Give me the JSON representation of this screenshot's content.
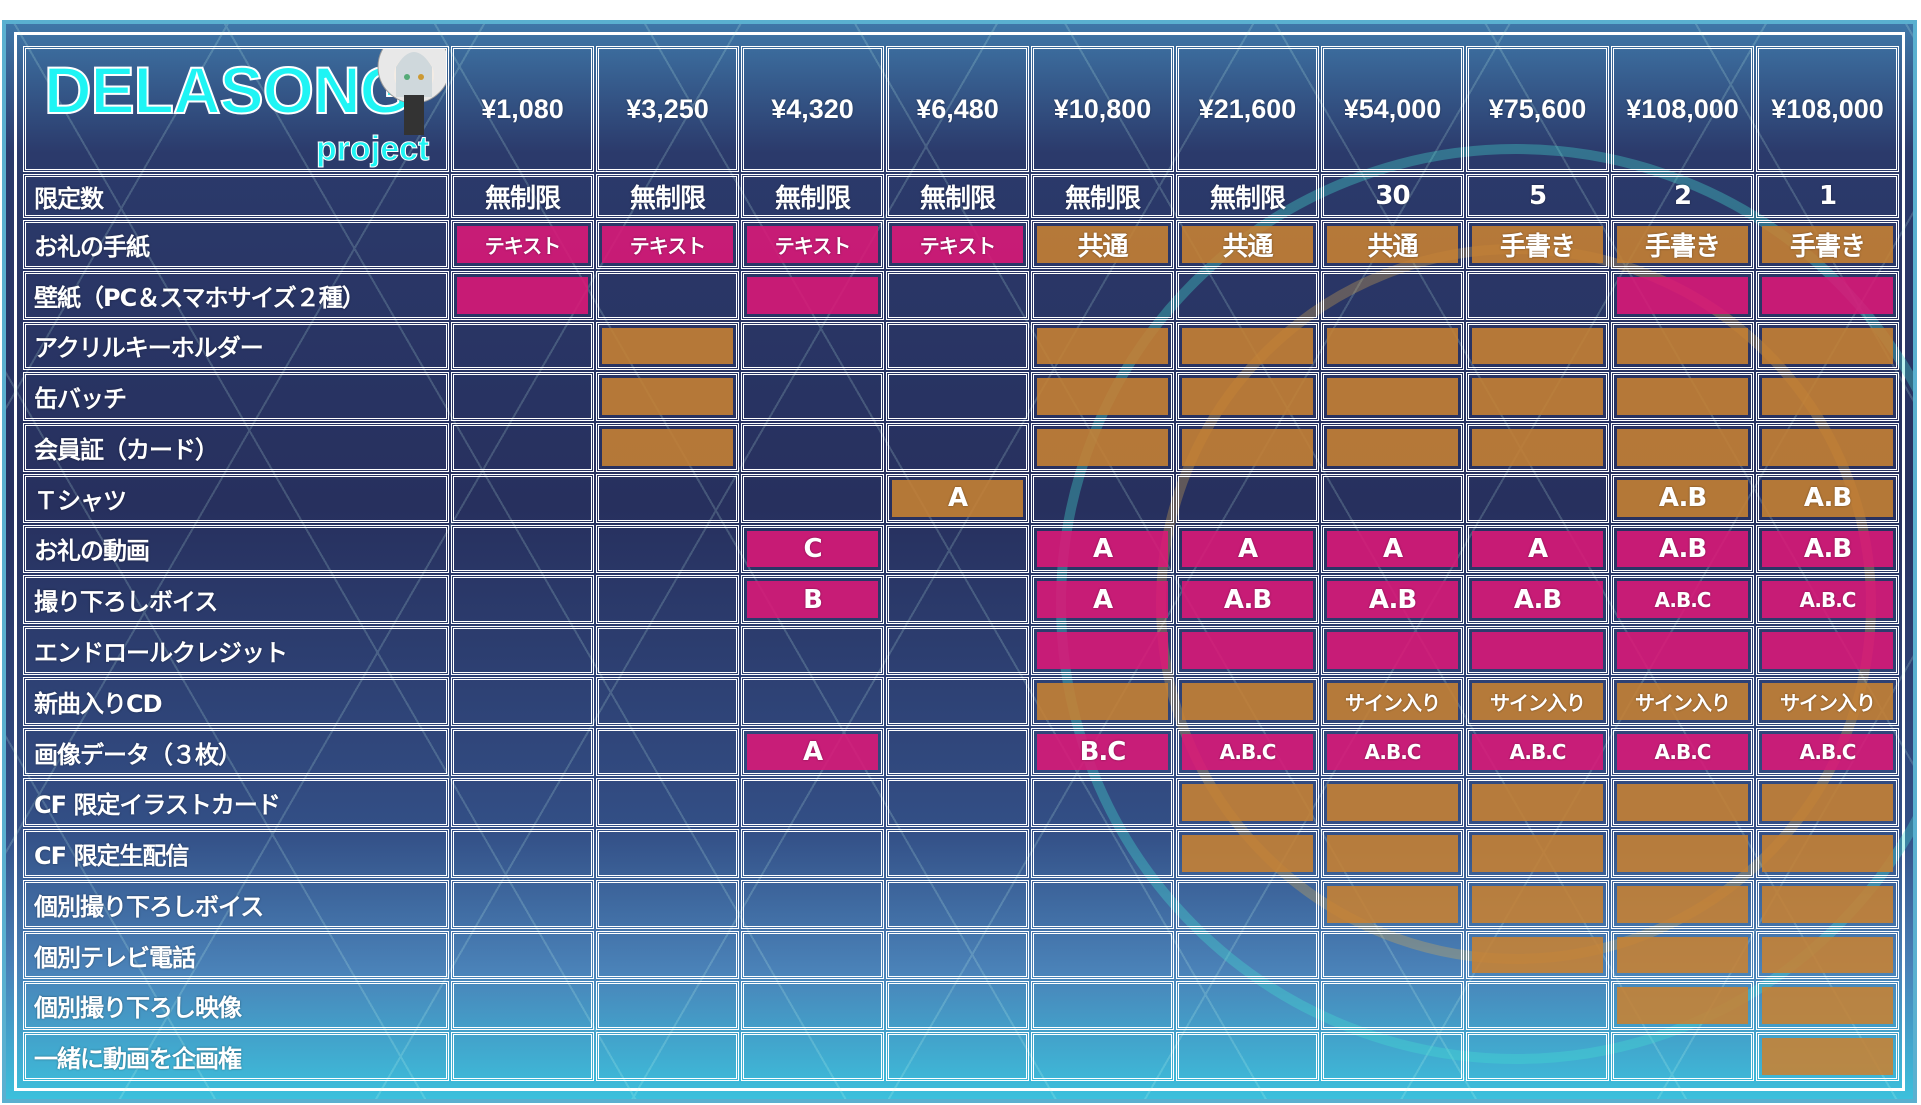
{
  "brand": {
    "name": "DELASONG",
    "sub": "project"
  },
  "colors": {
    "pink": "#dd1878",
    "orange": "#c88232",
    "background": "#27305e"
  },
  "prices": [
    "¥1,080",
    "¥3,250",
    "¥4,320",
    "¥6,480",
    "¥10,800",
    "¥21,600",
    "¥54,000",
    "¥75,600",
    "¥108,000",
    "¥108,000"
  ],
  "limit": {
    "label": "限定数",
    "values": [
      "無制限",
      "無制限",
      "無制限",
      "無制限",
      "無制限",
      "無制限",
      "30",
      "5",
      "2",
      "1"
    ]
  },
  "rows": [
    {
      "label": "お礼の手紙",
      "cells": [
        [
          "pink",
          "テキスト"
        ],
        [
          "pink",
          "テキスト"
        ],
        [
          "pink",
          "テキスト"
        ],
        [
          "pink",
          "テキスト"
        ],
        [
          "orange",
          "共通"
        ],
        [
          "orange",
          "共通"
        ],
        [
          "orange",
          "共通"
        ],
        [
          "orange",
          "手書き"
        ],
        [
          "orange",
          "手書き"
        ],
        [
          "orange",
          "手書き"
        ]
      ]
    },
    {
      "label": "壁紙（PC＆スマホサイズ２種）",
      "cells": [
        [
          "pink",
          ""
        ],
        [
          "",
          ""
        ],
        [
          "pink",
          ""
        ],
        [
          "",
          ""
        ],
        [
          "",
          ""
        ],
        [
          "",
          ""
        ],
        [
          "",
          ""
        ],
        [
          "",
          ""
        ],
        [
          "pink",
          ""
        ],
        [
          "pink",
          ""
        ]
      ]
    },
    {
      "label": "アクリルキーホルダー",
      "cells": [
        [
          "",
          ""
        ],
        [
          "orange",
          ""
        ],
        [
          "",
          ""
        ],
        [
          "",
          ""
        ],
        [
          "orange",
          ""
        ],
        [
          "orange",
          ""
        ],
        [
          "orange",
          ""
        ],
        [
          "orange",
          ""
        ],
        [
          "orange",
          ""
        ],
        [
          "orange",
          ""
        ]
      ]
    },
    {
      "label": "缶バッチ",
      "cells": [
        [
          "",
          ""
        ],
        [
          "orange",
          ""
        ],
        [
          "",
          ""
        ],
        [
          "",
          ""
        ],
        [
          "orange",
          ""
        ],
        [
          "orange",
          ""
        ],
        [
          "orange",
          ""
        ],
        [
          "orange",
          ""
        ],
        [
          "orange",
          ""
        ],
        [
          "orange",
          ""
        ]
      ]
    },
    {
      "label": "会員証（カード）",
      "cells": [
        [
          "",
          ""
        ],
        [
          "orange",
          ""
        ],
        [
          "",
          ""
        ],
        [
          "",
          ""
        ],
        [
          "orange",
          ""
        ],
        [
          "orange",
          ""
        ],
        [
          "orange",
          ""
        ],
        [
          "orange",
          ""
        ],
        [
          "orange",
          ""
        ],
        [
          "orange",
          ""
        ]
      ]
    },
    {
      "label": "Ｔシャツ",
      "cells": [
        [
          "",
          ""
        ],
        [
          "",
          ""
        ],
        [
          "",
          ""
        ],
        [
          "orange",
          "A"
        ],
        [
          "",
          ""
        ],
        [
          "",
          ""
        ],
        [
          "",
          ""
        ],
        [
          "",
          ""
        ],
        [
          "orange",
          "A.B"
        ],
        [
          "orange",
          "A.B"
        ]
      ]
    },
    {
      "label": "お礼の動画",
      "cells": [
        [
          "",
          ""
        ],
        [
          "",
          ""
        ],
        [
          "pink",
          "C"
        ],
        [
          "",
          ""
        ],
        [
          "pink",
          "A"
        ],
        [
          "pink",
          "A"
        ],
        [
          "pink",
          "A"
        ],
        [
          "pink",
          "A"
        ],
        [
          "pink",
          "A.B"
        ],
        [
          "pink",
          "A.B"
        ]
      ]
    },
    {
      "label": "撮り下ろしボイス",
      "cells": [
        [
          "",
          ""
        ],
        [
          "",
          ""
        ],
        [
          "pink",
          "B"
        ],
        [
          "",
          ""
        ],
        [
          "pink",
          "A"
        ],
        [
          "pink",
          "A.B"
        ],
        [
          "pink",
          "A.B"
        ],
        [
          "pink",
          "A.B"
        ],
        [
          "pink",
          "A.B.C"
        ],
        [
          "pink",
          "A.B.C"
        ]
      ]
    },
    {
      "label": "エンドロールクレジット",
      "cells": [
        [
          "",
          ""
        ],
        [
          "",
          ""
        ],
        [
          "",
          ""
        ],
        [
          "",
          ""
        ],
        [
          "pink",
          ""
        ],
        [
          "pink",
          ""
        ],
        [
          "pink",
          ""
        ],
        [
          "pink",
          ""
        ],
        [
          "pink",
          ""
        ],
        [
          "pink",
          ""
        ]
      ]
    },
    {
      "label": "新曲入りCD",
      "cells": [
        [
          "",
          ""
        ],
        [
          "",
          ""
        ],
        [
          "",
          ""
        ],
        [
          "",
          ""
        ],
        [
          "orange",
          ""
        ],
        [
          "orange",
          ""
        ],
        [
          "orange",
          "サイン入り"
        ],
        [
          "orange",
          "サイン入り"
        ],
        [
          "orange",
          "サイン入り"
        ],
        [
          "orange",
          "サイン入り"
        ]
      ]
    },
    {
      "label": "画像データ（３枚）",
      "cells": [
        [
          "",
          ""
        ],
        [
          "",
          ""
        ],
        [
          "pink",
          "A"
        ],
        [
          "",
          ""
        ],
        [
          "pink",
          "B.C"
        ],
        [
          "pink",
          "A.B.C"
        ],
        [
          "pink",
          "A.B.C"
        ],
        [
          "pink",
          "A.B.C"
        ],
        [
          "pink",
          "A.B.C"
        ],
        [
          "pink",
          "A.B.C"
        ]
      ]
    },
    {
      "label": "CF 限定イラストカード",
      "cells": [
        [
          "",
          ""
        ],
        [
          "",
          ""
        ],
        [
          "",
          ""
        ],
        [
          "",
          ""
        ],
        [
          "",
          ""
        ],
        [
          "orange",
          ""
        ],
        [
          "orange",
          ""
        ],
        [
          "orange",
          ""
        ],
        [
          "orange",
          ""
        ],
        [
          "orange",
          ""
        ]
      ]
    },
    {
      "label": "CF 限定生配信",
      "cells": [
        [
          "",
          ""
        ],
        [
          "",
          ""
        ],
        [
          "",
          ""
        ],
        [
          "",
          ""
        ],
        [
          "",
          ""
        ],
        [
          "orange",
          ""
        ],
        [
          "orange",
          ""
        ],
        [
          "orange",
          ""
        ],
        [
          "orange",
          ""
        ],
        [
          "orange",
          ""
        ]
      ]
    },
    {
      "label": "個別撮り下ろしボイス",
      "cells": [
        [
          "",
          ""
        ],
        [
          "",
          ""
        ],
        [
          "",
          ""
        ],
        [
          "",
          ""
        ],
        [
          "",
          ""
        ],
        [
          "",
          ""
        ],
        [
          "orange",
          ""
        ],
        [
          "orange",
          ""
        ],
        [
          "orange",
          ""
        ],
        [
          "orange",
          ""
        ]
      ]
    },
    {
      "label": "個別テレビ電話",
      "cells": [
        [
          "",
          ""
        ],
        [
          "",
          ""
        ],
        [
          "",
          ""
        ],
        [
          "",
          ""
        ],
        [
          "",
          ""
        ],
        [
          "",
          ""
        ],
        [
          "",
          ""
        ],
        [
          "orange",
          ""
        ],
        [
          "orange",
          ""
        ],
        [
          "orange",
          ""
        ]
      ]
    },
    {
      "label": "個別撮り下ろし映像",
      "cells": [
        [
          "",
          ""
        ],
        [
          "",
          ""
        ],
        [
          "",
          ""
        ],
        [
          "",
          ""
        ],
        [
          "",
          ""
        ],
        [
          "",
          ""
        ],
        [
          "",
          ""
        ],
        [
          "",
          ""
        ],
        [
          "orange",
          ""
        ],
        [
          "orange",
          ""
        ]
      ]
    },
    {
      "label": "一緒に動画を企画権",
      "cells": [
        [
          "",
          ""
        ],
        [
          "",
          ""
        ],
        [
          "",
          ""
        ],
        [
          "",
          ""
        ],
        [
          "",
          ""
        ],
        [
          "",
          ""
        ],
        [
          "",
          ""
        ],
        [
          "",
          ""
        ],
        [
          "",
          ""
        ],
        [
          "orange",
          ""
        ]
      ]
    }
  ]
}
